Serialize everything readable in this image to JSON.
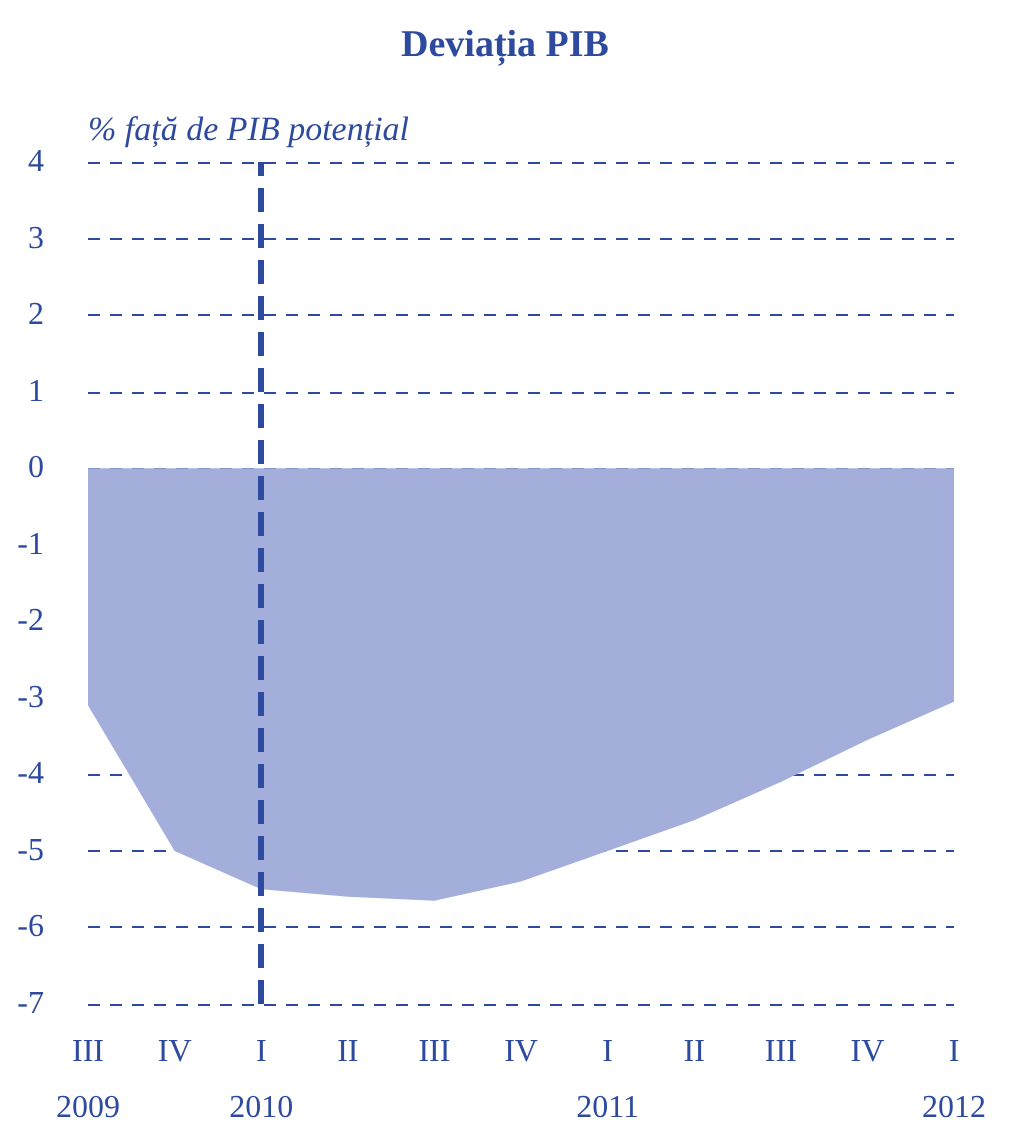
{
  "chart_data": {
    "type": "area",
    "title": "Deviația PIB",
    "ylabel": "% față de PIB potențial",
    "categories": [
      "III\n2009",
      "IV",
      "I\n2010",
      "II",
      "III",
      "IV",
      "I\n2011",
      "II",
      "III",
      "IV",
      "I\n2012"
    ],
    "series": [
      {
        "color": "#a3aedb",
        "values": [
          -3.1,
          -5.0,
          -5.5,
          -5.6,
          -5.65,
          -5.4,
          -5.0,
          -4.6,
          -4.1,
          -3.55,
          -3.05
        ]
      }
    ],
    "ylim": [
      -7,
      4
    ],
    "yticks": [
      -7,
      -6,
      -5,
      -4,
      -3,
      -2,
      -1,
      0,
      1,
      2,
      3,
      4
    ],
    "grid": "y",
    "ref_lines": [
      {
        "axis": "x",
        "value": "I\n2010",
        "color": "#2e4a9e",
        "line_style": "dashed"
      }
    ]
  }
}
